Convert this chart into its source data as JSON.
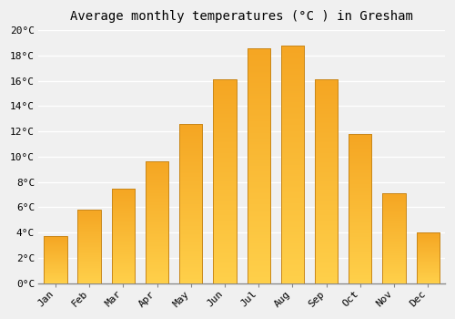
{
  "title": "Average monthly temperatures (°C ) in Gresham",
  "months": [
    "Jan",
    "Feb",
    "Mar",
    "Apr",
    "May",
    "Jun",
    "Jul",
    "Aug",
    "Sep",
    "Oct",
    "Nov",
    "Dec"
  ],
  "values": [
    3.7,
    5.8,
    7.5,
    9.6,
    12.6,
    16.1,
    18.6,
    18.8,
    16.1,
    11.8,
    7.1,
    4.0
  ],
  "bar_color_top": "#F5A623",
  "bar_color_bottom": "#FFD04A",
  "bar_edge_color": "#C8871A",
  "ylim": [
    0,
    20
  ],
  "yticks": [
    0,
    2,
    4,
    6,
    8,
    10,
    12,
    14,
    16,
    18,
    20
  ],
  "background_color": "#F0F0F0",
  "plot_bg_color": "#F0F0F0",
  "grid_color": "#FFFFFF",
  "title_fontsize": 10,
  "tick_fontsize": 8,
  "font_family": "monospace"
}
